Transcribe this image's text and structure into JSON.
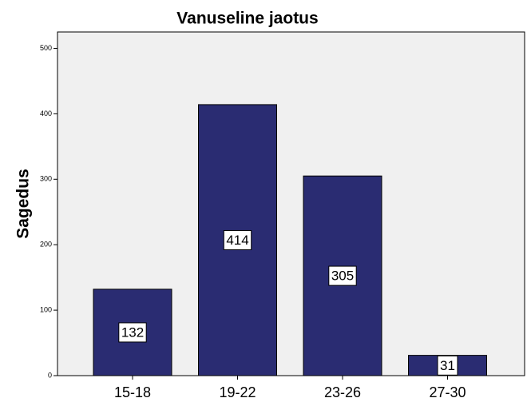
{
  "chart_data": {
    "type": "bar",
    "title": "Vanuseline jaotus",
    "y_label": "Sagedus",
    "categories": [
      "15-18",
      "19-22",
      "23-26",
      "27-30"
    ],
    "values": [
      132,
      414,
      305,
      31
    ],
    "color": "#2a2c72",
    "ylim": [
      0,
      525
    ],
    "yticks": [
      0,
      100,
      200,
      300,
      400,
      500
    ]
  }
}
